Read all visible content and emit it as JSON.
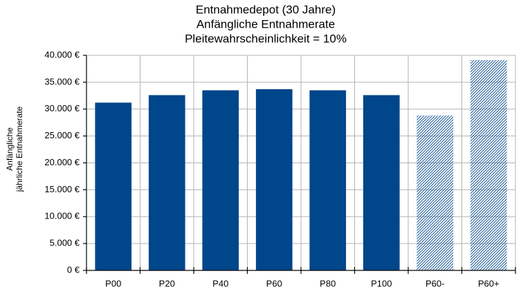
{
  "chart_data": {
    "type": "bar",
    "title": [
      "Entnahmedepot (30 Jahre)",
      "Anfängliche Entnahmerate",
      "Pleitewahrscheinlichkeit = 10%"
    ],
    "ylabel": [
      "Anfängliche",
      "jährliche Entnahmerate"
    ],
    "categories": [
      "P00",
      "P20",
      "P40",
      "P60",
      "P80",
      "P100",
      "P60-",
      "P60+"
    ],
    "values": [
      31200,
      32600,
      33500,
      33700,
      33500,
      32600,
      28800,
      39100
    ],
    "hatched": [
      false,
      false,
      false,
      false,
      false,
      false,
      true,
      true
    ],
    "color": "#00468b",
    "ylim": [
      0,
      40000
    ],
    "yticks": [
      {
        "value": 0,
        "label": "0 €"
      },
      {
        "value": 5000,
        "label": "5.000 €"
      },
      {
        "value": 10000,
        "label": "10.000 €"
      },
      {
        "value": 15000,
        "label": "15.000 €"
      },
      {
        "value": 20000,
        "label": "20.000 €"
      },
      {
        "value": 25000,
        "label": "25.000 €"
      },
      {
        "value": 30000,
        "label": "30.000 €"
      },
      {
        "value": 35000,
        "label": "35.000 €"
      },
      {
        "value": 40000,
        "label": "40.000 €"
      }
    ],
    "grid": true
  }
}
